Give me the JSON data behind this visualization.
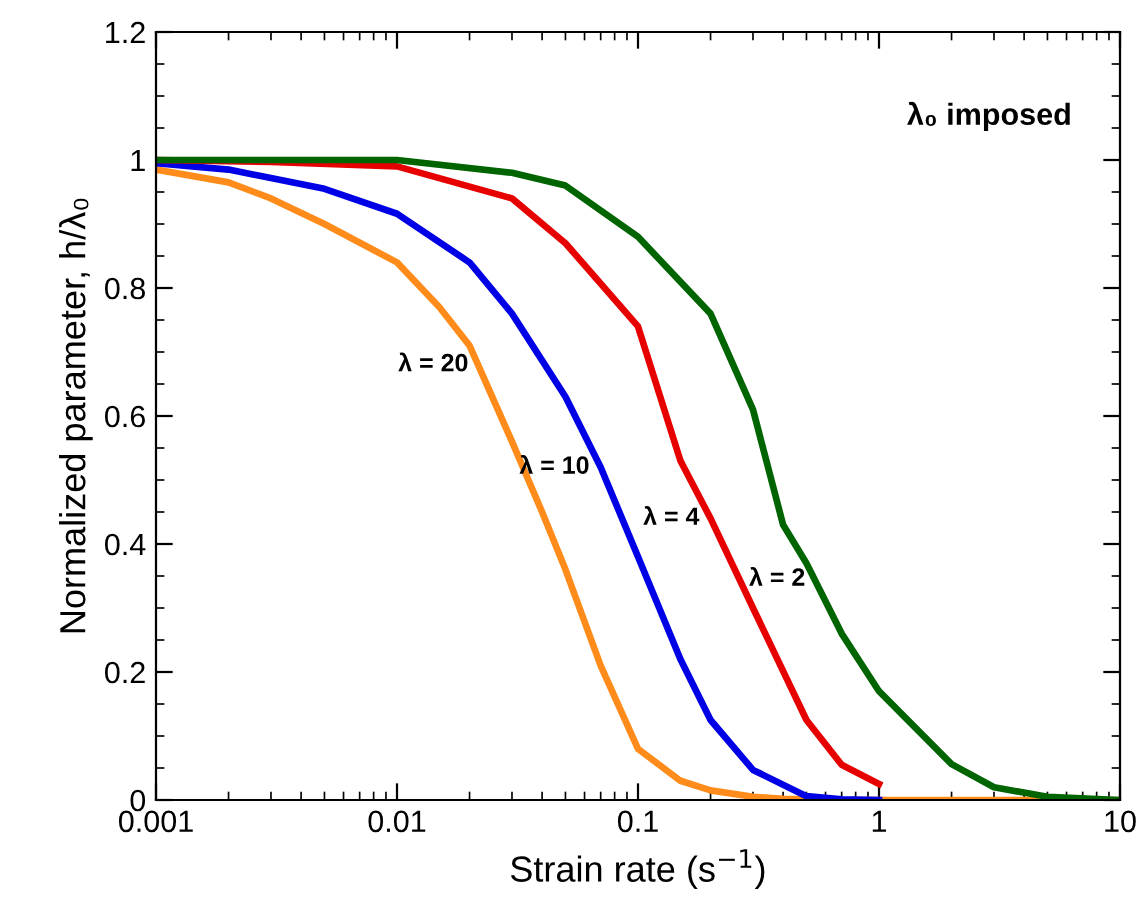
{
  "chart_data": {
    "type": "line",
    "xlabel": "Strain rate (s$^{−1}$)",
    "ylabel": "Normalized parameter, h/λ₀",
    "log": "x",
    "xlim": [
      0.001,
      10
    ],
    "xticks": [
      0.001,
      0.01,
      0.1,
      1,
      10
    ],
    "ylim": [
      0,
      1.2
    ],
    "yticks": [
      0,
      0.2,
      0.4,
      0.6,
      0.8,
      1,
      1.2
    ],
    "grid": false,
    "line_style": "solid",
    "series": [
      {
        "color": "#ff8c1a",
        "x": [
          0.001,
          0.002,
          0.003,
          0.005,
          0.01,
          0.015,
          0.02,
          0.03,
          0.04,
          0.05,
          0.07,
          0.1,
          0.15,
          0.2,
          0.3,
          0.4,
          0.7,
          1,
          3,
          10
        ],
        "values": [
          0.985,
          0.965,
          0.94,
          0.9,
          0.84,
          0.77,
          0.71,
          0.56,
          0.45,
          0.36,
          0.21,
          0.08,
          0.03,
          0.015,
          0.005,
          0.002,
          0,
          0,
          0,
          0
        ]
      },
      {
        "color": "#0000e6",
        "x": [
          0.001,
          0.002,
          0.005,
          0.01,
          0.02,
          0.03,
          0.05,
          0.07,
          0.1,
          0.15,
          0.2,
          0.3,
          0.5,
          0.7,
          1
        ],
        "values": [
          0.995,
          0.985,
          0.955,
          0.916,
          0.84,
          0.76,
          0.63,
          0.52,
          0.38,
          0.22,
          0.125,
          0.047,
          0.006,
          0.001,
          0
        ]
      },
      {
        "color": "#e60000",
        "x": [
          0.001,
          0.003,
          0.01,
          0.03,
          0.05,
          0.1,
          0.15,
          0.2,
          0.3,
          0.5,
          0.7,
          1
        ],
        "values": [
          1.0,
          0.997,
          0.99,
          0.94,
          0.87,
          0.74,
          0.53,
          0.44,
          0.3,
          0.125,
          0.055,
          0.025
        ]
      },
      {
        "color": "#006400",
        "x": [
          0.001,
          0.01,
          0.03,
          0.05,
          0.1,
          0.2,
          0.3,
          0.4,
          0.5,
          0.7,
          1,
          2,
          3,
          5,
          10
        ],
        "values": [
          1.0,
          1.0,
          0.98,
          0.96,
          0.88,
          0.76,
          0.61,
          0.43,
          0.37,
          0.26,
          0.17,
          0.056,
          0.02,
          0.005,
          0
        ]
      }
    ],
    "annotations": [
      {
        "text": "λ = 20",
        "x": 0.022,
        "y": 0.68
      },
      {
        "text": "λ = 10",
        "x": 0.07,
        "y": 0.52
      },
      {
        "text": "λ = 4",
        "x": 0.2,
        "y": 0.44
      },
      {
        "text": "λ = 2",
        "x": 0.55,
        "y": 0.345
      },
      "λ₀ imposed"
    ]
  }
}
